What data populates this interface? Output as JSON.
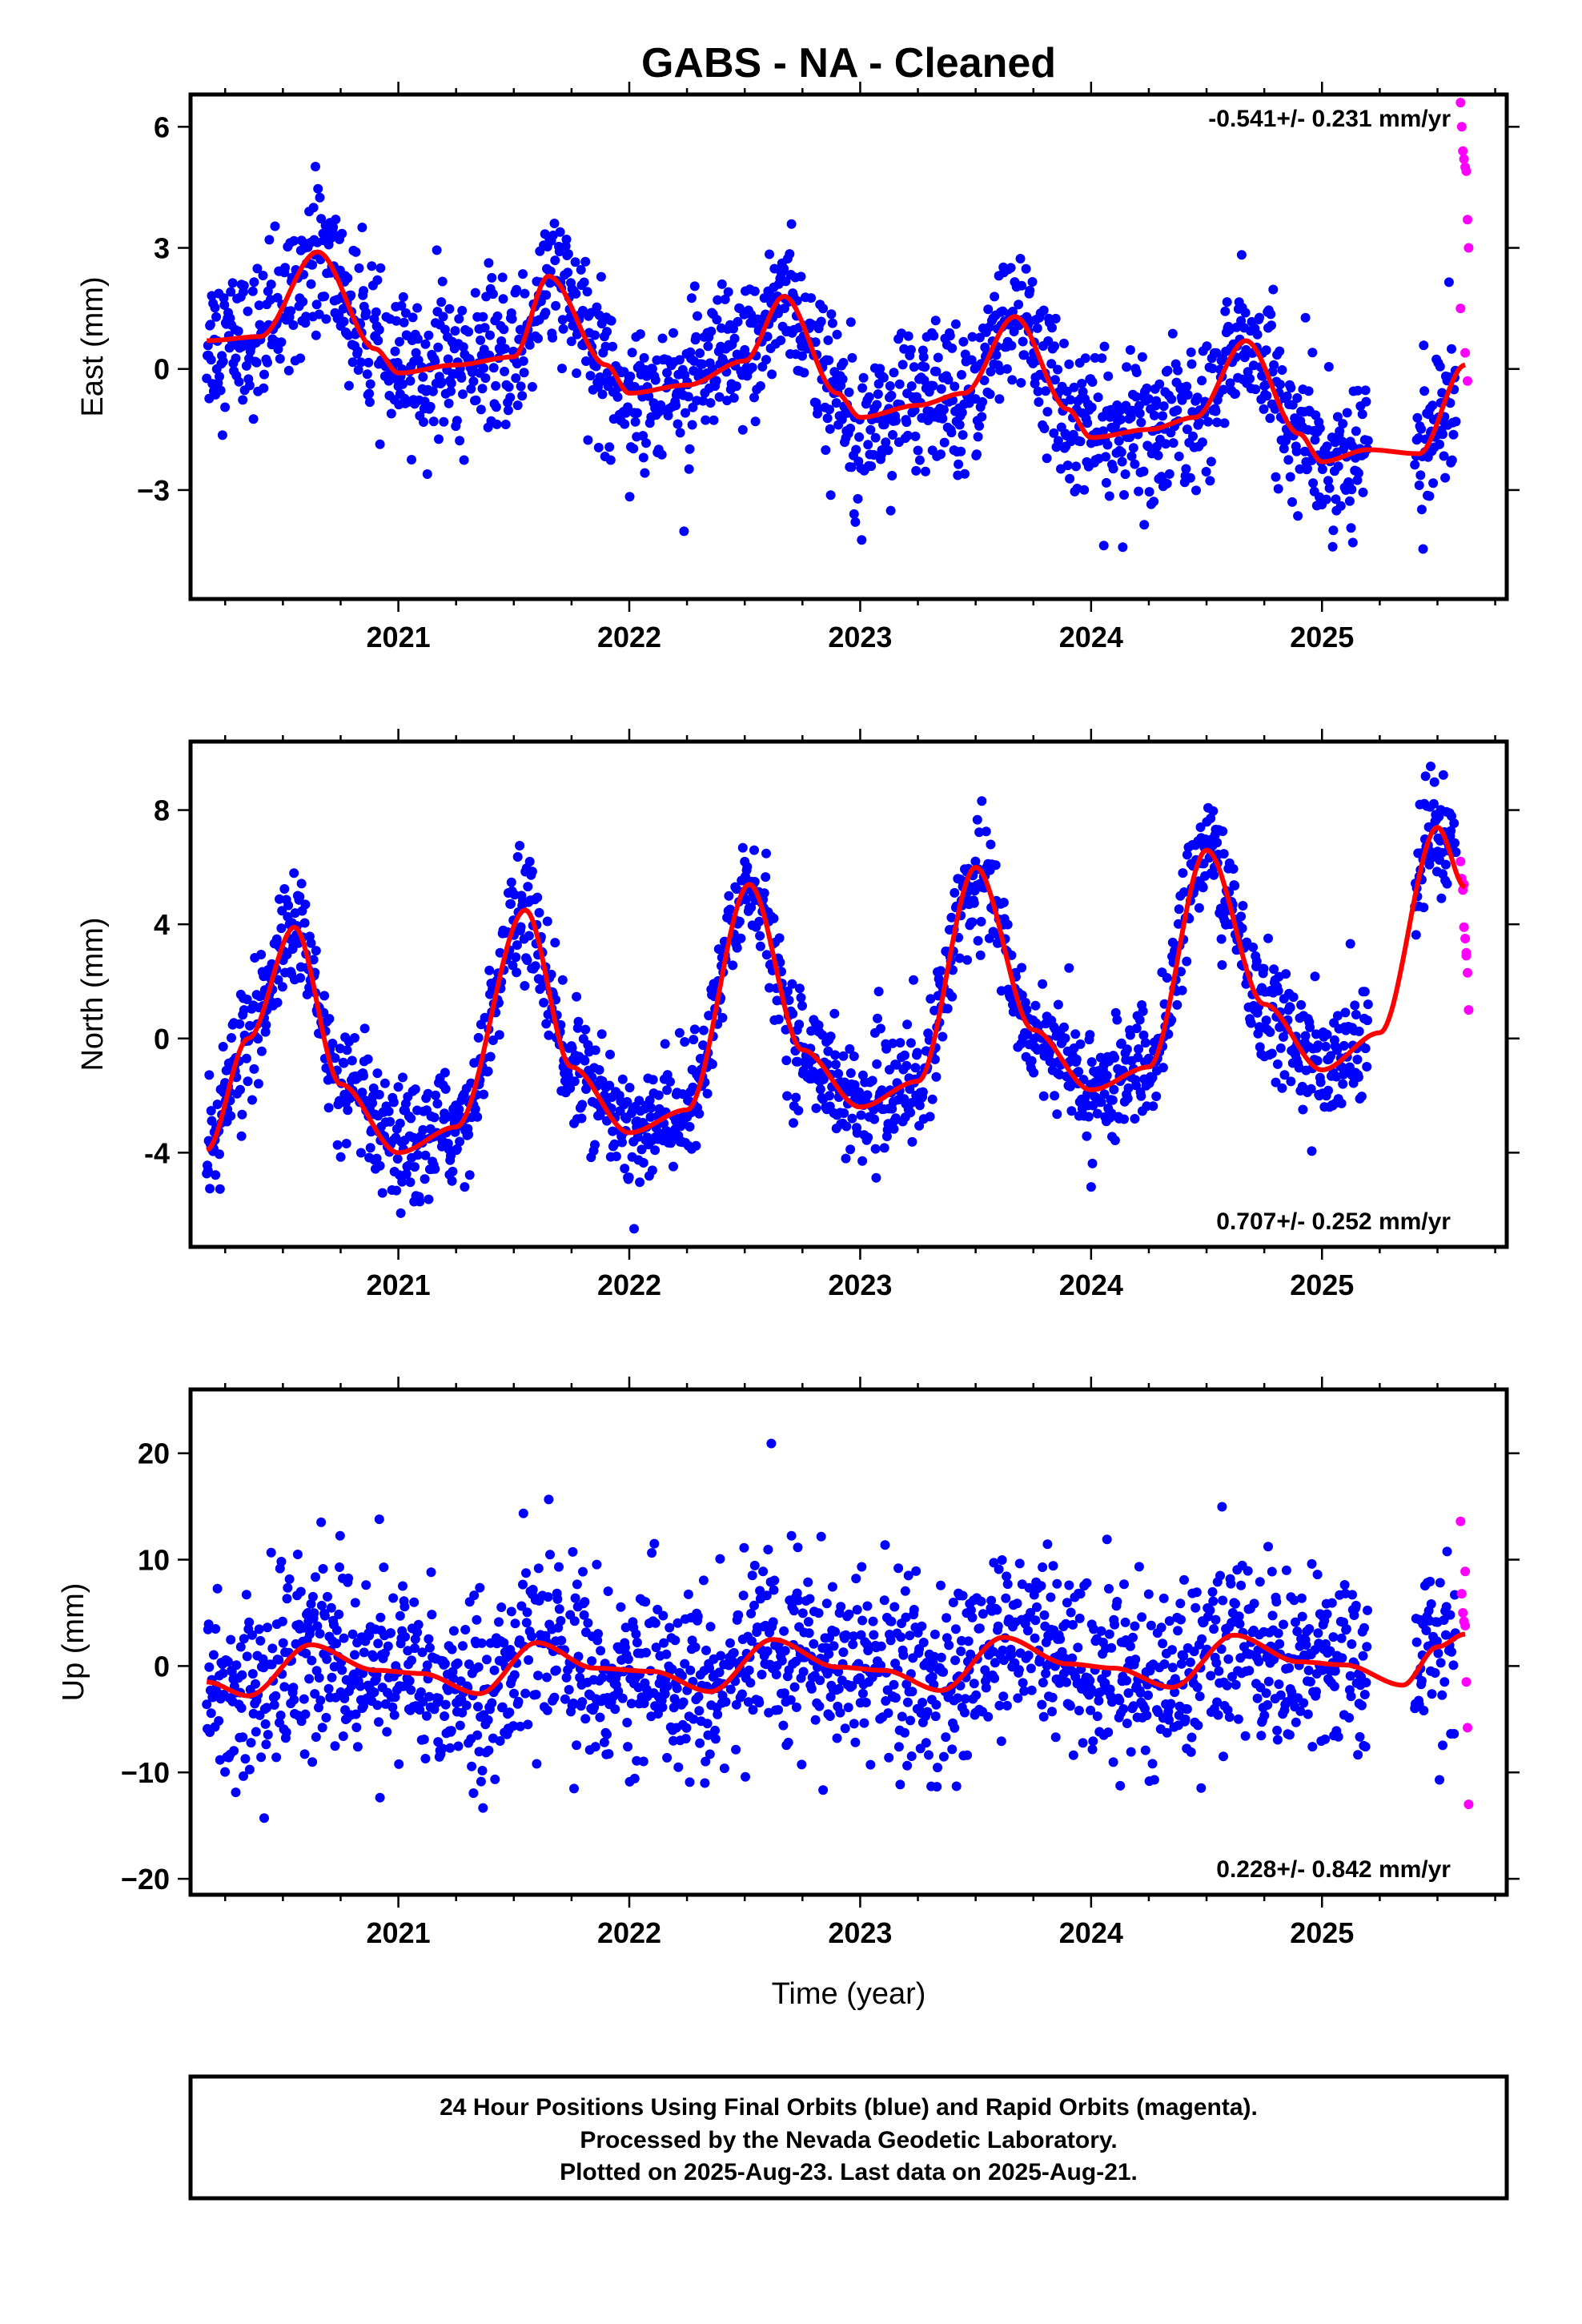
{
  "title": "GABS  - NA - Cleaned",
  "colors": {
    "final": "#0000ff",
    "rapid": "#ff00ff",
    "model": "#ff0000",
    "frame": "#000000"
  },
  "chart_data": [
    {
      "type": "scatter",
      "name": "east",
      "ylabel": "East (mm)",
      "xlabel": "",
      "xlim": [
        2020.1,
        2025.8
      ],
      "ylim": [
        -5.7,
        6.8
      ],
      "yticks": [
        -3,
        0,
        3,
        6
      ],
      "ytick_labels": [
        "−3",
        "0",
        "3",
        "6"
      ],
      "xticks": [
        2021,
        2022,
        2023,
        2024,
        2025
      ],
      "xtick_labels": [
        "2021",
        "2022",
        "2023",
        "2024",
        "2025"
      ],
      "rate_text": "-0.541+/- 0.231 mm/yr",
      "rate_position": "top-right",
      "rate_mm_yr": -0.541,
      "rate_sigma_mm_yr": 0.231,
      "annual_amplitude_mm": 1.3,
      "annual_peak_fraction": 0.65,
      "semiannual_amplitude_mm": 0.25,
      "scatter_mm": 0.9,
      "model_curve": {
        "x": [
          2020.17,
          2020.4,
          2020.65,
          2020.9,
          2021.0,
          2021.25,
          2021.5,
          2021.65,
          2021.9,
          2022.0,
          2022.25,
          2022.5,
          2022.67,
          2022.9,
          2023.0,
          2023.25,
          2023.45,
          2023.67,
          2023.9,
          2024.0,
          2024.25,
          2024.45,
          2024.67,
          2024.9,
          2025.0,
          2025.2,
          2025.42,
          2025.62
        ],
        "y": [
          0.7,
          0.8,
          2.9,
          0.5,
          -0.1,
          0.1,
          0.3,
          2.3,
          0.1,
          -0.6,
          -0.4,
          0.2,
          1.8,
          -0.6,
          -1.2,
          -0.9,
          -0.6,
          1.3,
          -1.0,
          -1.7,
          -1.5,
          -1.2,
          0.7,
          -1.6,
          -2.3,
          -2.0,
          -2.1,
          0.1
        ]
      },
      "rapid_points": {
        "x": [
          2025.6,
          2025.605,
          2025.61,
          2025.615,
          2025.62,
          2025.625,
          2025.63,
          2025.635,
          2025.6,
          2025.62,
          2025.63
        ],
        "y": [
          6.6,
          6.0,
          5.4,
          5.2,
          5.0,
          4.9,
          3.7,
          3.0,
          1.5,
          0.4,
          -0.3
        ]
      }
    },
    {
      "type": "scatter",
      "name": "north",
      "ylabel": "North (mm)",
      "xlabel": "",
      "xlim": [
        2020.1,
        2025.8
      ],
      "ylim": [
        -7.3,
        10.4
      ],
      "yticks": [
        -4,
        0,
        4,
        8
      ],
      "ytick_labels": [
        "-4",
        "0",
        "4",
        "8"
      ],
      "xticks": [
        2021,
        2022,
        2023,
        2024,
        2025
      ],
      "xtick_labels": [
        "2021",
        "2022",
        "2023",
        "2024",
        "2025"
      ],
      "rate_text": "0.707+/- 0.252 mm/yr",
      "rate_position": "bottom-right",
      "rate_mm_yr": 0.707,
      "rate_sigma_mm_yr": 0.252,
      "annual_amplitude_mm": 4.2,
      "annual_peak_fraction": 0.52,
      "semiannual_amplitude_mm": 0.5,
      "scatter_mm": 1.0,
      "model_curve": {
        "x": [
          2020.17,
          2020.35,
          2020.55,
          2020.75,
          2021.0,
          2021.25,
          2021.55,
          2021.75,
          2022.0,
          2022.25,
          2022.52,
          2022.75,
          2023.0,
          2023.25,
          2023.5,
          2023.75,
          2024.0,
          2024.25,
          2024.5,
          2024.75,
          2025.0,
          2025.25,
          2025.5,
          2025.62
        ],
        "y": [
          -3.9,
          0.0,
          3.9,
          -1.6,
          -4.0,
          -3.1,
          4.5,
          -1.0,
          -3.3,
          -2.5,
          5.4,
          -0.4,
          -2.4,
          -1.5,
          6.0,
          0.3,
          -1.8,
          -1.0,
          6.6,
          1.2,
          -1.1,
          0.2,
          7.4,
          5.3
        ]
      },
      "rapid_points": {
        "x": [
          2025.6,
          2025.605,
          2025.61,
          2025.615,
          2025.62,
          2025.625,
          2025.63,
          2025.635,
          2025.615,
          2025.625
        ],
        "y": [
          6.2,
          5.6,
          5.2,
          3.9,
          3.5,
          2.9,
          2.3,
          1.0,
          5.4,
          3.0
        ]
      }
    },
    {
      "type": "scatter",
      "name": "up",
      "ylabel": "Up (mm)",
      "xlabel": "Time (year)",
      "xlim": [
        2020.1,
        2025.8
      ],
      "ylim": [
        -21.5,
        26.0
      ],
      "yticks": [
        -20,
        -10,
        0,
        10,
        20
      ],
      "ytick_labels": [
        "−20",
        "−10",
        "0",
        "10",
        "20"
      ],
      "xticks": [
        2021,
        2022,
        2023,
        2024,
        2025
      ],
      "xtick_labels": [
        "2021",
        "2022",
        "2023",
        "2024",
        "2025"
      ],
      "rate_text": "0.228+/- 0.842 mm/yr",
      "rate_position": "bottom-right",
      "rate_mm_yr": 0.228,
      "rate_sigma_mm_yr": 0.842,
      "annual_amplitude_mm": 2.0,
      "annual_peak_fraction": 0.62,
      "semiannual_amplitude_mm": 0.6,
      "scatter_mm": 4.3,
      "model_curve": {
        "x": [
          2020.17,
          2020.35,
          2020.62,
          2020.9,
          2021.1,
          2021.35,
          2021.6,
          2021.85,
          2022.1,
          2022.35,
          2022.62,
          2022.9,
          2023.1,
          2023.35,
          2023.62,
          2023.9,
          2024.1,
          2024.35,
          2024.62,
          2024.9,
          2025.1,
          2025.35,
          2025.5,
          2025.62
        ],
        "y": [
          -1.5,
          -2.8,
          2.0,
          -0.4,
          -0.7,
          -2.6,
          2.2,
          -0.2,
          -0.5,
          -2.4,
          2.5,
          -0.1,
          -0.4,
          -2.3,
          2.7,
          0.2,
          -0.2,
          -2.0,
          2.9,
          0.4,
          0.1,
          -1.8,
          1.8,
          3.0
        ]
      },
      "rapid_points": {
        "x": [
          2025.6,
          2025.605,
          2025.61,
          2025.615,
          2025.62,
          2025.625,
          2025.63,
          2025.635,
          2025.62
        ],
        "y": [
          13.6,
          6.8,
          5.0,
          4.2,
          3.8,
          -1.5,
          -5.8,
          -13.0,
          8.9
        ]
      }
    }
  ],
  "footer": {
    "line1": "24 Hour Positions Using Final Orbits (blue) and Rapid Orbits (magenta).",
    "line2": "Processed by the Nevada Geodetic Laboratory.",
    "line3": "Plotted on 2025-Aug-23. Last data on 2025-Aug-21."
  }
}
